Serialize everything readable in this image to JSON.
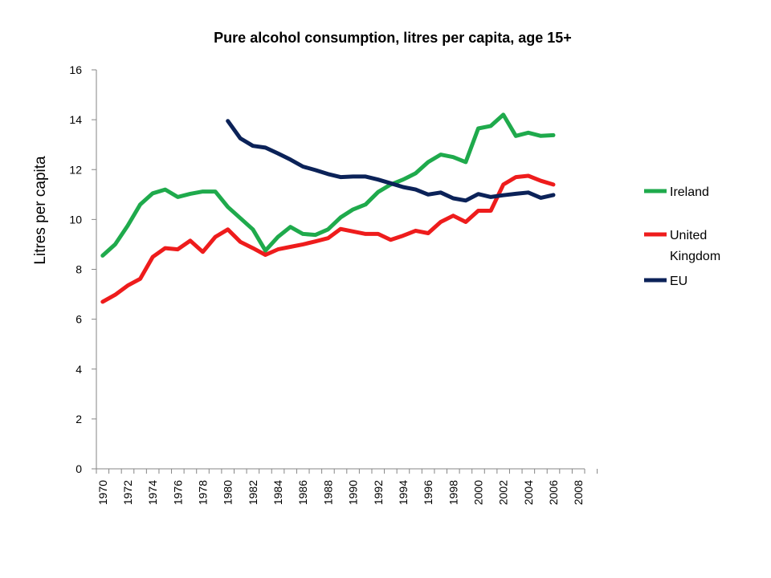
{
  "chart_data": {
    "type": "line",
    "title": "Pure alcohol consumption, litres per capita, age 15+",
    "xlabel": "",
    "ylabel": "Litres per capita",
    "ylim": [
      0,
      16
    ],
    "yticks": [
      "0",
      "2",
      "4",
      "6",
      "8",
      "10",
      "12",
      "14",
      "16"
    ],
    "xlim": [
      1970,
      2009
    ],
    "xticks": [
      "1970",
      "1972",
      "1974",
      "1976",
      "1978",
      "1980",
      "1982",
      "1984",
      "1986",
      "1988",
      "1990",
      "1992",
      "1994",
      "1996",
      "1998",
      "2000",
      "2002",
      "2004",
      "2006",
      "2008"
    ],
    "grid": false,
    "legend_position": "right",
    "series": [
      {
        "name": "Ireland",
        "color": "#1faa4c",
        "x": [
          1970,
          1971,
          1972,
          1973,
          1974,
          1975,
          1976,
          1977,
          1978,
          1979,
          1980,
          1981,
          1982,
          1983,
          1984,
          1985,
          1986,
          1987,
          1988,
          1989,
          1990,
          1991,
          1992,
          1993,
          1994,
          1995,
          1996,
          1997,
          1998,
          1999,
          2000,
          2001,
          2002,
          2003,
          2004,
          2005,
          2006
        ],
        "values": [
          8.55,
          9.0,
          9.75,
          10.6,
          11.05,
          11.2,
          10.9,
          11.03,
          11.12,
          11.12,
          10.5,
          10.05,
          9.6,
          8.75,
          9.3,
          9.7,
          9.42,
          9.38,
          9.6,
          10.08,
          10.4,
          10.6,
          11.1,
          11.4,
          11.6,
          11.85,
          12.3,
          12.6,
          12.5,
          12.3,
          13.65,
          13.75,
          14.2,
          13.35,
          13.48,
          13.35,
          13.38
        ]
      },
      {
        "name": "United Kingdom",
        "color": "#ee1c1c",
        "x": [
          1970,
          1971,
          1972,
          1973,
          1974,
          1975,
          1976,
          1977,
          1978,
          1979,
          1980,
          1981,
          1982,
          1983,
          1984,
          1985,
          1986,
          1987,
          1988,
          1989,
          1990,
          1991,
          1992,
          1993,
          1994,
          1995,
          1996,
          1997,
          1998,
          1999,
          2000,
          2001,
          2002,
          2003,
          2004,
          2005,
          2006
        ],
        "values": [
          6.7,
          6.98,
          7.35,
          7.62,
          8.5,
          8.85,
          8.8,
          9.15,
          8.7,
          9.3,
          9.6,
          9.1,
          8.85,
          8.58,
          8.8,
          8.9,
          9.0,
          9.12,
          9.25,
          9.62,
          9.52,
          9.42,
          9.42,
          9.18,
          9.35,
          9.55,
          9.45,
          9.9,
          10.15,
          9.9,
          10.35,
          10.35,
          11.4,
          11.7,
          11.75,
          11.55,
          11.4
        ]
      },
      {
        "name": "EU",
        "color": "#0b2258",
        "x": [
          1980,
          1981,
          1982,
          1983,
          1984,
          1985,
          1986,
          1987,
          1988,
          1989,
          1990,
          1991,
          1992,
          1993,
          1994,
          1995,
          1996,
          1997,
          1998,
          1999,
          2000,
          2001,
          2002,
          2003,
          2004,
          2005,
          2006
        ],
        "values": [
          13.95,
          13.25,
          12.95,
          12.88,
          12.65,
          12.4,
          12.12,
          11.98,
          11.82,
          11.7,
          11.72,
          11.72,
          11.6,
          11.45,
          11.3,
          11.2,
          11.0,
          11.08,
          10.85,
          10.76,
          11.02,
          10.9,
          10.97,
          11.03,
          11.08,
          10.87,
          10.98
        ]
      }
    ]
  }
}
